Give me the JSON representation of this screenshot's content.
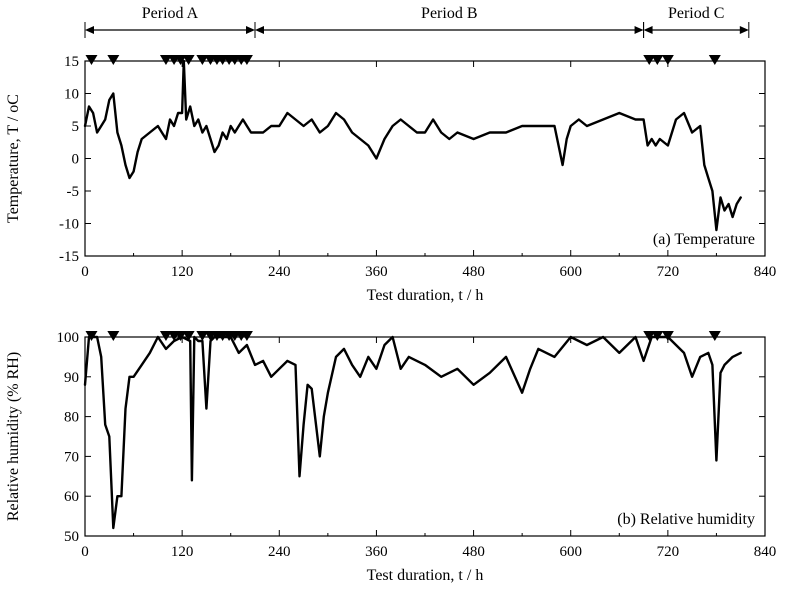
{
  "figure": {
    "periods": [
      {
        "label": "Period A",
        "start": 0,
        "end": 210
      },
      {
        "label": "Period B",
        "start": 210,
        "end": 690
      },
      {
        "label": "Period C",
        "start": 690,
        "end": 820
      }
    ],
    "event_markers_h": [
      8,
      35,
      100,
      110,
      118,
      128,
      145,
      155,
      163,
      170,
      178,
      185,
      193,
      200,
      697,
      707,
      720,
      778
    ]
  },
  "chart_data": [
    {
      "type": "line",
      "panel_label": "(a) Temperature",
      "xlabel": "Test duration, t / h",
      "ylabel": "Temperature, T / oC",
      "xlim": [
        0,
        840
      ],
      "ylim": [
        -15,
        15
      ],
      "xticks": [
        0,
        120,
        240,
        360,
        480,
        600,
        720,
        840
      ],
      "yticks": [
        -15,
        -10,
        -5,
        0,
        5,
        10,
        15
      ],
      "grid": false,
      "x": [
        0,
        5,
        10,
        15,
        20,
        25,
        30,
        35,
        40,
        45,
        50,
        55,
        60,
        65,
        70,
        80,
        90,
        95,
        100,
        105,
        110,
        115,
        120,
        122,
        125,
        130,
        135,
        140,
        145,
        150,
        155,
        160,
        165,
        170,
        175,
        180,
        185,
        190,
        195,
        200,
        205,
        210,
        220,
        230,
        240,
        250,
        260,
        270,
        280,
        290,
        300,
        310,
        320,
        330,
        340,
        350,
        360,
        370,
        380,
        390,
        400,
        410,
        420,
        430,
        440,
        450,
        460,
        480,
        500,
        520,
        540,
        560,
        580,
        590,
        595,
        600,
        610,
        620,
        640,
        660,
        680,
        690,
        695,
        700,
        705,
        710,
        720,
        730,
        740,
        750,
        760,
        765,
        770,
        775,
        780,
        785,
        790,
        795,
        800,
        805,
        810
      ],
      "y": [
        5,
        8,
        7,
        4,
        5,
        6,
        9,
        10,
        4,
        2,
        -1,
        -3,
        -2,
        1,
        3,
        4,
        5,
        4,
        3,
        6,
        5,
        7,
        7,
        15,
        6,
        8,
        5,
        6,
        4,
        5,
        3,
        1,
        2,
        4,
        3,
        5,
        4,
        5,
        6,
        5,
        4,
        4,
        4,
        5,
        5,
        7,
        6,
        5,
        6,
        4,
        5,
        7,
        6,
        4,
        3,
        2,
        0,
        3,
        5,
        6,
        5,
        4,
        4,
        6,
        4,
        3,
        4,
        3,
        4,
        4,
        5,
        5,
        5,
        -1,
        3,
        5,
        6,
        5,
        6,
        7,
        6,
        6,
        2,
        3,
        2,
        3,
        2,
        6,
        7,
        4,
        5,
        -1,
        -3,
        -5,
        -11,
        -6,
        -8,
        -7,
        -9,
        -7,
        -6
      ]
    },
    {
      "type": "line",
      "panel_label": "(b) Relative humidity",
      "xlabel": "Test duration, t / h",
      "ylabel": "Relative humidity  (% RH)",
      "xlim": [
        0,
        840
      ],
      "ylim": [
        50,
        100
      ],
      "xticks": [
        0,
        120,
        240,
        360,
        480,
        600,
        720,
        840
      ],
      "yticks": [
        50,
        60,
        70,
        80,
        90,
        100
      ],
      "grid": false,
      "x": [
        0,
        5,
        10,
        15,
        20,
        25,
        30,
        35,
        40,
        45,
        50,
        55,
        60,
        70,
        80,
        90,
        100,
        110,
        120,
        130,
        132,
        135,
        140,
        145,
        150,
        155,
        160,
        170,
        180,
        190,
        200,
        210,
        220,
        230,
        240,
        250,
        260,
        265,
        270,
        275,
        280,
        290,
        295,
        300,
        310,
        320,
        330,
        340,
        350,
        360,
        370,
        380,
        390,
        400,
        420,
        440,
        460,
        480,
        500,
        520,
        540,
        550,
        560,
        580,
        600,
        620,
        640,
        660,
        680,
        690,
        700,
        705,
        710,
        720,
        740,
        750,
        760,
        770,
        775,
        780,
        785,
        790,
        800,
        810
      ],
      "y": [
        88,
        100,
        100,
        100,
        95,
        78,
        75,
        52,
        60,
        60,
        82,
        90,
        90,
        93,
        96,
        100,
        97,
        99,
        100,
        99,
        64,
        100,
        99,
        99,
        82,
        99,
        100,
        100,
        100,
        96,
        98,
        93,
        94,
        90,
        92,
        94,
        93,
        65,
        78,
        88,
        87,
        70,
        80,
        86,
        95,
        97,
        93,
        90,
        95,
        92,
        98,
        100,
        92,
        95,
        93,
        90,
        92,
        88,
        91,
        95,
        86,
        92,
        97,
        95,
        100,
        98,
        100,
        96,
        100,
        94,
        100,
        100,
        100,
        100,
        96,
        90,
        95,
        96,
        93,
        69,
        91,
        93,
        95,
        96
      ]
    }
  ]
}
